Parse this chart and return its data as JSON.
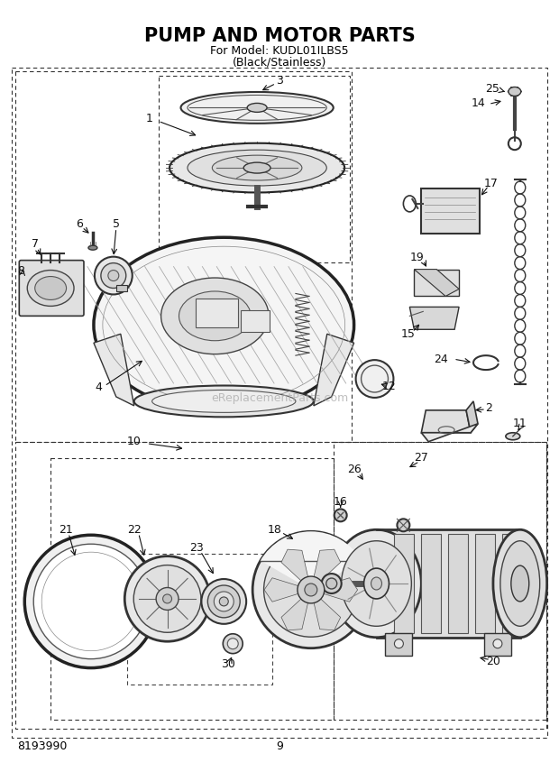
{
  "title": "PUMP AND MOTOR PARTS",
  "subtitle1": "For Model: KUDL01ILBS5",
  "subtitle2": "(Black/Stainless)",
  "model_number": "8193990",
  "page_number": "9",
  "watermark": "eReplacementParts.com",
  "bg": "#ffffff",
  "fg": "#000000",
  "gray1": "#cccccc",
  "gray2": "#888888",
  "gray3": "#444444",
  "dash_color": "#555555"
}
